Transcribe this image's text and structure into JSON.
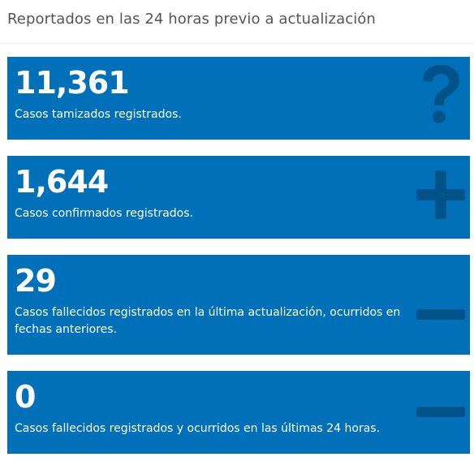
{
  "header": {
    "title": "Reportados en las 24 horas previo a actualización"
  },
  "cards": [
    {
      "value": "11,361",
      "label": "Casos tamizados registrados.",
      "icon": "question-icon"
    },
    {
      "value": "1,644",
      "label": "Casos confirmados registrados.",
      "icon": "plus-icon"
    },
    {
      "value": "29",
      "label": "Casos fallecidos registrados en la última actualización, ocurridos en fechas anteriores.",
      "icon": "minus-icon"
    },
    {
      "value": "0",
      "label": "Casos fallecidos registrados y ocurridos en las últimas 24 horas.",
      "icon": "minus-icon"
    }
  ],
  "colors": {
    "card_background": "#0070b8",
    "card_text": "#ffffff",
    "header_text": "#555555"
  }
}
